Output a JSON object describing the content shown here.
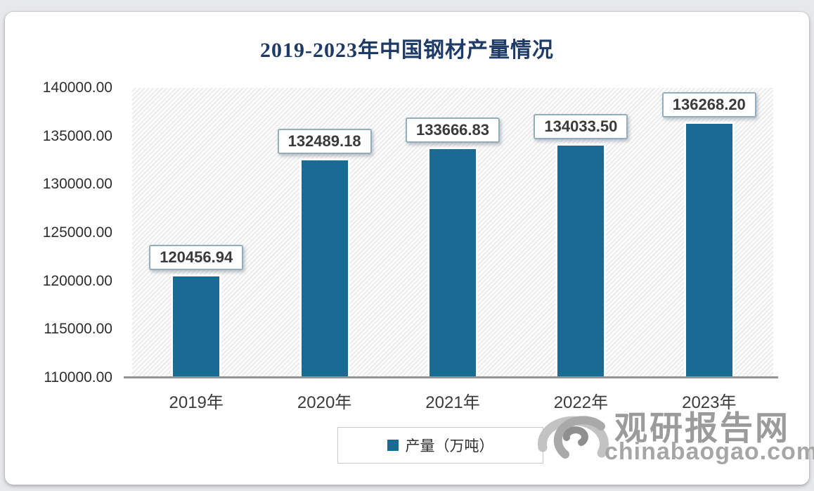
{
  "chart_data": {
    "type": "bar",
    "title": "2019-2023年中国钢材产量情况",
    "categories": [
      "2019年",
      "2020年",
      "2021年",
      "2022年",
      "2023年"
    ],
    "values": [
      120456.94,
      132489.18,
      133666.83,
      134033.5,
      136268.2
    ],
    "value_labels": [
      "120456.94",
      "132489.18",
      "133666.83",
      "134033.50",
      "136268.20"
    ],
    "ylim": [
      110000,
      140000
    ],
    "ytick_step": 5000,
    "yticks": [
      "140000.00",
      "135000.00",
      "130000.00",
      "125000.00",
      "120000.00",
      "115000.00",
      "110000.00"
    ],
    "xlabel": "",
    "ylabel": "",
    "grid": false,
    "bar_color": "#1a6b94",
    "legend_position": "bottom-center",
    "legend": [
      {
        "label": "产量（万吨）",
        "color": "#1a6b94"
      }
    ]
  },
  "watermark": {
    "site_name": "观研报告网",
    "site_url": "chinabaogao.com",
    "logo": "swirl-logo",
    "color": "#9b9b9b"
  },
  "colors": {
    "title": "#1e3a66",
    "bar": "#1a6b94",
    "axis_line": "#949494",
    "plot_hatch": "#e9e9e9",
    "label_box_border": "#92aebd",
    "text": "#3b3b3b"
  }
}
